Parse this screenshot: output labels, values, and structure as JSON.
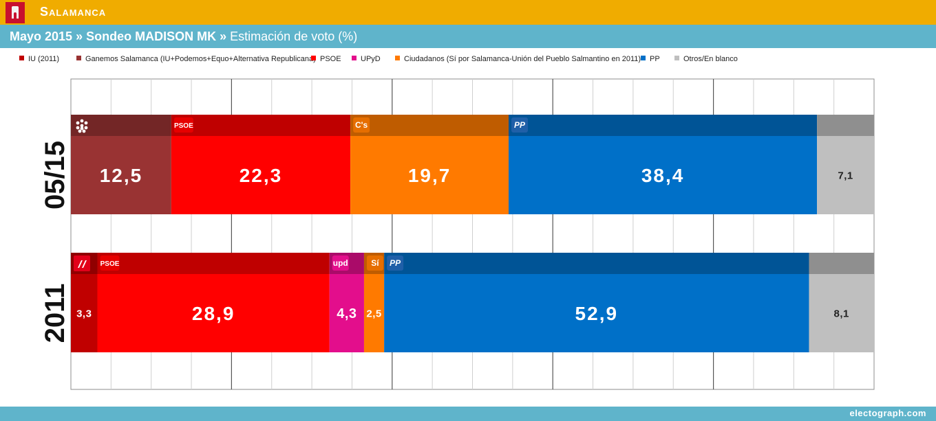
{
  "header": {
    "region": "Salamanca",
    "poll_date": "Mayo 2015",
    "separator": "»",
    "pollster": "Sondeo MADISON MK",
    "metric": "Estimación de voto (%)"
  },
  "legend": [
    {
      "label": "IU (2011)",
      "color": "#c00000"
    },
    {
      "label": "Ganemos Salamanca (IU+Podemos+Equo+Alternativa Republicana)",
      "color": "#993333"
    },
    {
      "label": "PSOE",
      "color": "#ff0000"
    },
    {
      "label": "UPyD",
      "color": "#e30e8c"
    },
    {
      "label": "Ciudadanos (Sí por Salamanca-Unión del Pueblo Salmantino en 2011)",
      "color": "#ff7a00"
    },
    {
      "label": "PP",
      "color": "#0070c8"
    },
    {
      "label": "Otros/En blanco",
      "color": "#bfbfbf"
    }
  ],
  "footer": {
    "credit": "electograph.com"
  },
  "chart_data": {
    "type": "bar",
    "orientation": "horizontal",
    "stacked": true,
    "xlim": [
      0,
      100
    ],
    "grid": true,
    "rows": [
      {
        "label": "05/15",
        "segments": [
          {
            "party": "Ganemos Salamanca",
            "value": 12.5,
            "display": "12,5",
            "color": "#993333",
            "logo": "ganemos-logo-icon"
          },
          {
            "party": "PSOE",
            "value": 22.3,
            "display": "22,3",
            "color": "#ff0000",
            "logo": "PSOE"
          },
          {
            "party": "Ciudadanos",
            "value": 19.7,
            "display": "19,7",
            "color": "#ff7a00",
            "logo": "C's"
          },
          {
            "party": "PP",
            "value": 38.4,
            "display": "38,4",
            "color": "#0070c8",
            "logo": "PP"
          },
          {
            "party": "Otros/En blanco",
            "value": 7.1,
            "display": "7,1",
            "color": "#bfbfbf",
            "logo": ""
          }
        ]
      },
      {
        "label": "2011",
        "segments": [
          {
            "party": "IU (2011)",
            "value": 3.3,
            "display": "3,3",
            "color": "#c00000",
            "logo": "iu-logo-icon"
          },
          {
            "party": "PSOE",
            "value": 28.9,
            "display": "28,9",
            "color": "#ff0000",
            "logo": "PSOE"
          },
          {
            "party": "UPyD",
            "value": 4.3,
            "display": "4,3",
            "color": "#e30e8c",
            "logo": "upd"
          },
          {
            "party": "Sí por Salamanca",
            "value": 2.5,
            "display": "2,5",
            "color": "#ff7a00",
            "logo": "Sí"
          },
          {
            "party": "PP",
            "value": 52.9,
            "display": "52,9",
            "color": "#0070c8",
            "logo": "PP"
          },
          {
            "party": "Otros/En blanco",
            "value": 8.1,
            "display": "8,1",
            "color": "#bfbfbf",
            "logo": ""
          }
        ]
      }
    ]
  }
}
